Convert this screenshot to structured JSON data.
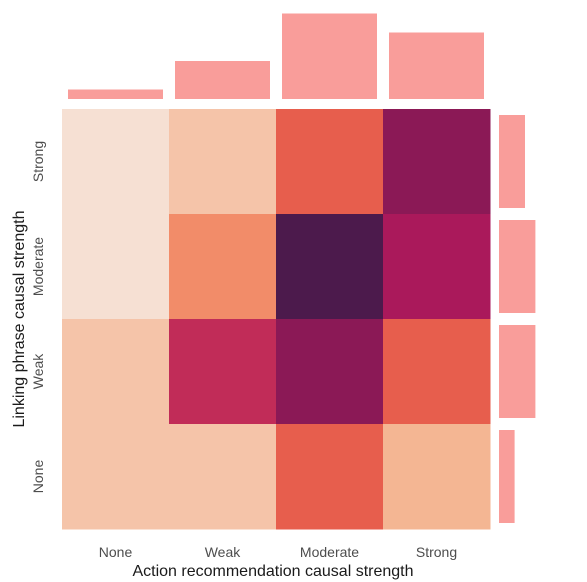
{
  "chart_data": {
    "type": "heatmap",
    "title": "",
    "xlabel": "Action recommendation causal strength",
    "ylabel": "Linking phrase causal strength",
    "x_categories": [
      "None",
      "Weak",
      "Moderate",
      "Strong"
    ],
    "y_categories": [
      "None",
      "Weak",
      "Moderate",
      "Strong"
    ],
    "cell_values_rows_top_to_bottom": [
      [
        1,
        3,
        8,
        12
      ],
      [
        1,
        6,
        14,
        11
      ],
      [
        3,
        10,
        12,
        8
      ],
      [
        3,
        3,
        8,
        4
      ]
    ],
    "top_marginal": {
      "categories": [
        "None",
        "Weak",
        "Moderate",
        "Strong"
      ],
      "values": [
        0.1,
        0.4,
        0.9,
        0.7
      ]
    },
    "right_marginal": {
      "categories": [
        "Strong",
        "Moderate",
        "Weak",
        "None"
      ],
      "values": [
        0.5,
        0.7,
        0.7,
        0.3
      ]
    },
    "colors": {
      "marginal_bar": "#f99d9a",
      "scale_low": "#f6e0d3",
      "scale_mid_low": "#f4b38e",
      "scale_mid": "#f16a4a",
      "scale_mid_high": "#b2195c",
      "scale_high": "#4c1a4c"
    },
    "grid": false,
    "legend": "none"
  }
}
